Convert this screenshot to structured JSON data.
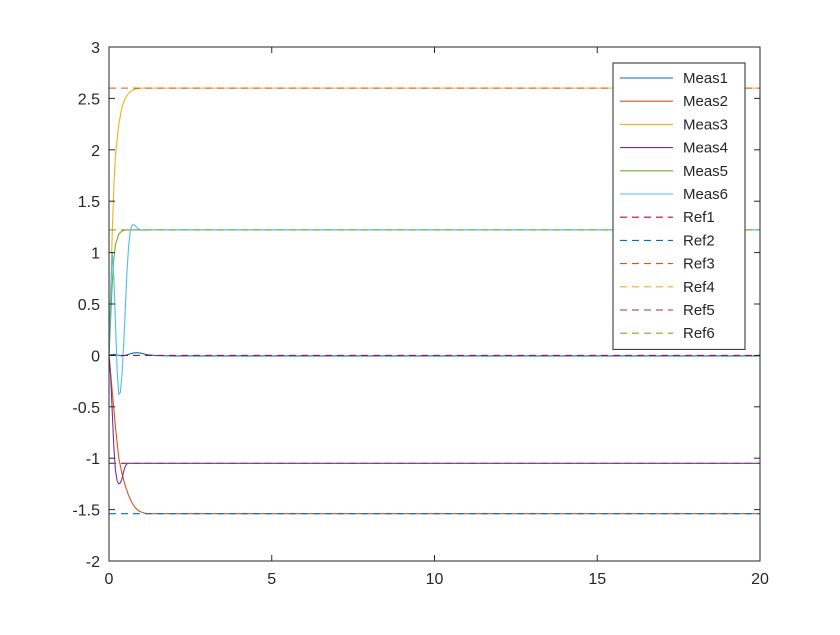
{
  "chart_data": {
    "type": "line",
    "title": "",
    "xlabel": "",
    "ylabel": "",
    "xlim": [
      0,
      20
    ],
    "ylim": [
      -2,
      3
    ],
    "xticks": [
      0,
      5,
      10,
      15,
      20
    ],
    "yticks": [
      -2,
      -1.5,
      -1,
      -0.5,
      0,
      0.5,
      1,
      1.5,
      2,
      2.5,
      3
    ],
    "xtick_labels": [
      "0",
      "5",
      "10",
      "15",
      "20"
    ],
    "ytick_labels": [
      "-2",
      "-1.5",
      "-1",
      "-0.5",
      "0",
      "0.5",
      "1",
      "1.5",
      "2",
      "2.5",
      "3"
    ],
    "grid": false,
    "legend_position": "top-right",
    "series": [
      {
        "name": "Meas1",
        "color": "#0072BD",
        "style": "solid",
        "x": [
          0,
          0.1,
          0.2,
          0.3,
          0.4,
          0.5,
          0.6,
          0.7,
          0.8,
          0.9,
          1.0,
          1.1,
          1.2,
          1.4,
          1.6,
          2,
          20
        ],
        "y": [
          0,
          0.01,
          0.01,
          0.0,
          -0.005,
          0.0,
          0.01,
          0.02,
          0.025,
          0.025,
          0.02,
          0.012,
          0.006,
          0.0,
          -0.003,
          -0.005,
          -0.005
        ]
      },
      {
        "name": "Meas2",
        "color": "#D95319",
        "style": "solid",
        "x": [
          0,
          0.1,
          0.2,
          0.3,
          0.4,
          0.5,
          0.6,
          0.7,
          0.8,
          0.9,
          1.0,
          1.1,
          1.2,
          1.3,
          1.5,
          2,
          20
        ],
        "y": [
          0,
          -0.35,
          -0.7,
          -1.0,
          -1.15,
          -1.27,
          -1.36,
          -1.43,
          -1.48,
          -1.51,
          -1.525,
          -1.535,
          -1.54,
          -1.54,
          -1.54,
          -1.54,
          -1.54
        ]
      },
      {
        "name": "Meas3",
        "color": "#EDB120",
        "style": "solid",
        "x": [
          0,
          0.05,
          0.1,
          0.15,
          0.2,
          0.3,
          0.4,
          0.5,
          0.6,
          0.7,
          0.8,
          0.9,
          1.0,
          1.2,
          1.5,
          2,
          20
        ],
        "y": [
          0,
          0.6,
          1.2,
          1.65,
          1.95,
          2.25,
          2.42,
          2.5,
          2.55,
          2.575,
          2.59,
          2.595,
          2.6,
          2.6,
          2.6,
          2.6,
          2.6
        ]
      },
      {
        "name": "Meas4",
        "color": "#7E2F8E",
        "style": "solid",
        "x": [
          0,
          0.05,
          0.1,
          0.15,
          0.2,
          0.25,
          0.3,
          0.35,
          0.4,
          0.45,
          0.5,
          0.55,
          0.6,
          0.7,
          0.8,
          1.0,
          1.5,
          20
        ],
        "y": [
          0,
          -0.2,
          -0.55,
          -0.9,
          -1.12,
          -1.22,
          -1.25,
          -1.24,
          -1.2,
          -1.13,
          -1.08,
          -1.055,
          -1.05,
          -1.05,
          -1.05,
          -1.05,
          -1.05,
          -1.05
        ]
      },
      {
        "name": "Meas5",
        "color": "#77AC30",
        "style": "solid",
        "x": [
          0,
          0.05,
          0.1,
          0.15,
          0.2,
          0.3,
          0.4,
          0.5,
          0.6,
          0.7,
          0.8,
          0.9,
          1.0,
          1.2,
          1.5,
          2,
          20
        ],
        "y": [
          0,
          0.35,
          0.7,
          0.95,
          1.08,
          1.18,
          1.21,
          1.22,
          1.22,
          1.22,
          1.22,
          1.22,
          1.22,
          1.22,
          1.22,
          1.22,
          1.22
        ]
      },
      {
        "name": "Meas6",
        "color": "#4DBEEE",
        "style": "solid",
        "x": [
          0,
          0.05,
          0.1,
          0.15,
          0.2,
          0.25,
          0.3,
          0.35,
          0.4,
          0.45,
          0.5,
          0.55,
          0.6,
          0.65,
          0.7,
          0.75,
          0.8,
          0.85,
          0.9,
          0.95,
          1.0,
          1.05,
          1.1,
          1.2,
          1.4,
          1.6,
          2,
          20
        ],
        "y": [
          0,
          0.6,
          1.0,
          0.75,
          0.3,
          -0.15,
          -0.38,
          -0.36,
          -0.18,
          0.1,
          0.45,
          0.8,
          1.05,
          1.2,
          1.26,
          1.275,
          1.265,
          1.245,
          1.23,
          1.225,
          1.22,
          1.218,
          1.218,
          1.22,
          1.22,
          1.22,
          1.22,
          1.22
        ]
      },
      {
        "name": "Ref1",
        "color": "#A2142F",
        "style": "dashed",
        "x": [
          0,
          20
        ],
        "y": [
          0,
          0
        ]
      },
      {
        "name": "Ref2",
        "color": "#0072BD",
        "style": "dashed",
        "x": [
          0,
          20
        ],
        "y": [
          -1.54,
          -1.54
        ]
      },
      {
        "name": "Ref3",
        "color": "#D95319",
        "style": "dashed",
        "x": [
          0,
          20
        ],
        "y": [
          2.6,
          2.6
        ]
      },
      {
        "name": "Ref4",
        "color": "#EDB120",
        "style": "dashed",
        "x": [
          0,
          20
        ],
        "y": [
          -1.05,
          -1.05
        ]
      },
      {
        "name": "Ref5",
        "color": "#7E2F8E",
        "style": "dashed",
        "x": [
          0,
          20
        ],
        "y": [
          -1.05,
          -1.05
        ]
      },
      {
        "name": "Ref6",
        "color": "#77AC30",
        "style": "dashed",
        "x": [
          0,
          20
        ],
        "y": [
          1.22,
          1.22
        ]
      }
    ]
  }
}
